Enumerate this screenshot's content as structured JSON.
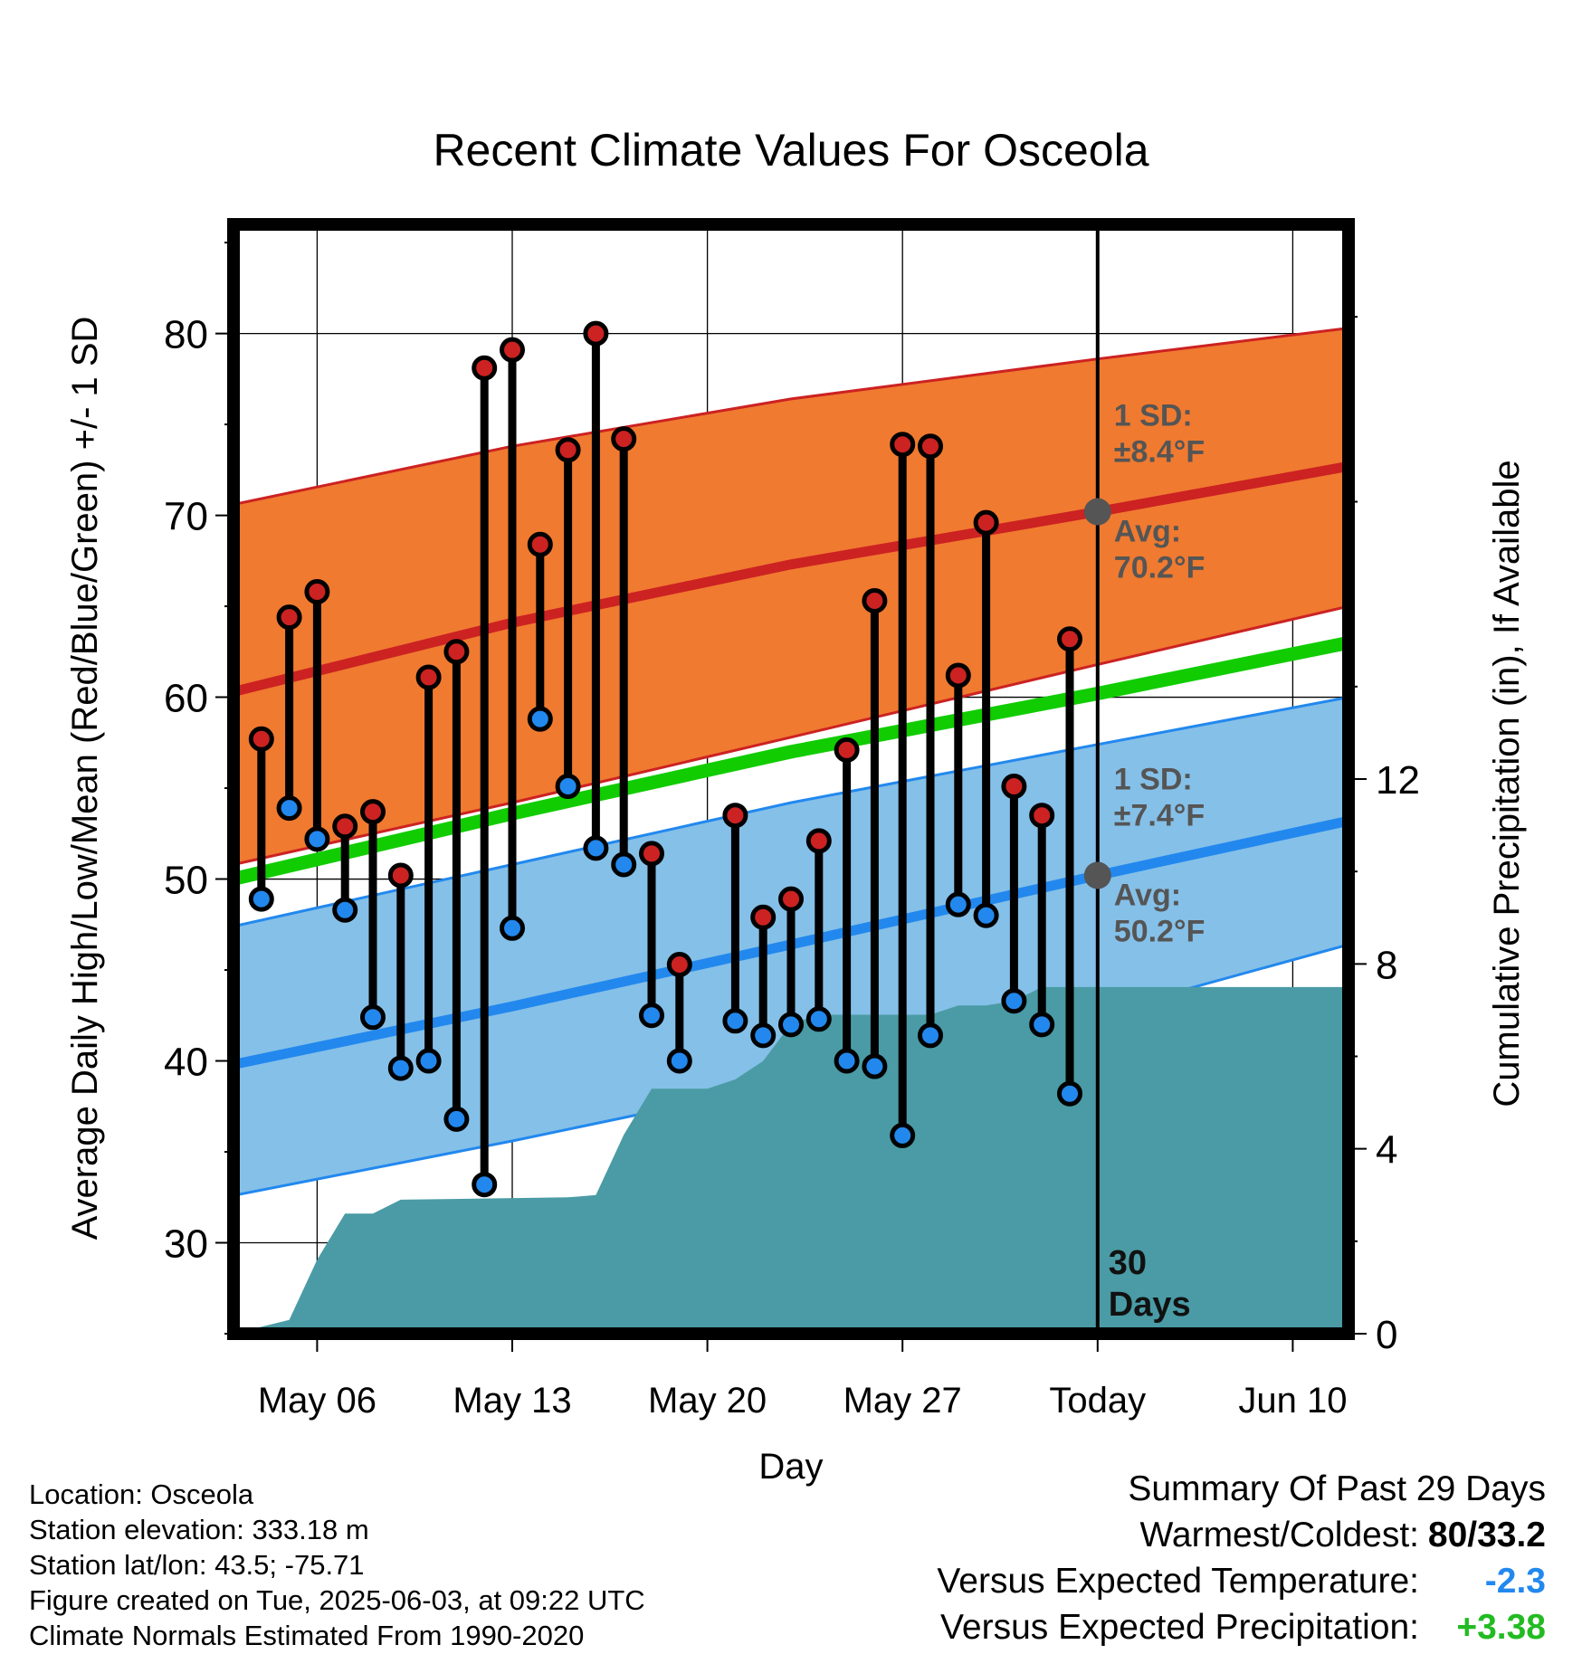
{
  "chart_data": {
    "type": "line",
    "title": "Recent Climate Values For Osceola",
    "xlabel": "Day",
    "ylabel": "Average Daily High/Low/Mean (Red/Blue/Green) +/- 1 SD",
    "y2label": "Cumulative Precipitation (in), If Available",
    "ylim": [
      25,
      86
    ],
    "y2lim": [
      0,
      24
    ],
    "yticks": [
      30,
      40,
      50,
      60,
      70,
      80
    ],
    "y2ticks": [
      0,
      4,
      8,
      12
    ],
    "xrange": [
      "2025-05-03",
      "2025-06-12"
    ],
    "xticks": [
      {
        "date": "2025-05-06",
        "label": "May 06"
      },
      {
        "date": "2025-05-13",
        "label": "May 13"
      },
      {
        "date": "2025-05-20",
        "label": "May 20"
      },
      {
        "date": "2025-05-27",
        "label": "May 27"
      },
      {
        "date": "2025-06-03",
        "label": "Today"
      },
      {
        "date": "2025-06-10",
        "label": "Jun 10"
      }
    ],
    "grid": true,
    "today": "2025-06-03",
    "today_window_label": [
      "30",
      "Days"
    ],
    "normals": {
      "dates": [
        "2025-05-03",
        "2025-05-13",
        "2025-05-23",
        "2025-06-03",
        "2025-06-12"
      ],
      "avg_high": [
        60.3,
        64.1,
        67.3,
        70.2,
        72.7
      ],
      "high_sd_upper": [
        70.6,
        73.8,
        76.4,
        78.6,
        80.3
      ],
      "high_sd_lower": [
        50.8,
        54.2,
        57.8,
        61.8,
        65.0
      ],
      "avg_low": [
        39.8,
        43.0,
        46.4,
        50.2,
        53.2
      ],
      "low_sd_upper": [
        47.4,
        50.8,
        54.2,
        57.4,
        60.0
      ],
      "low_sd_lower": [
        32.6,
        35.6,
        38.8,
        42.6,
        46.4
      ],
      "avg_mean": [
        50.0,
        53.6,
        57.0,
        60.2,
        63.0
      ]
    },
    "high_annotation": {
      "sd_label": "1 SD:",
      "sd_value": "±8.4°F",
      "avg_label": "Avg:",
      "avg_value": "70.2°F"
    },
    "low_annotation": {
      "sd_label": "1 SD:",
      "sd_value": "±7.4°F",
      "avg_label": "Avg:",
      "avg_value": "50.2°F"
    },
    "observed": [
      {
        "date": "2025-05-04",
        "high": 57.7,
        "low": 48.9
      },
      {
        "date": "2025-05-05",
        "high": 64.4,
        "low": 53.9
      },
      {
        "date": "2025-05-06",
        "high": 65.8,
        "low": 52.2
      },
      {
        "date": "2025-05-07",
        "high": 52.9,
        "low": 48.3
      },
      {
        "date": "2025-05-08",
        "high": 53.7,
        "low": 42.4
      },
      {
        "date": "2025-05-09",
        "high": 50.2,
        "low": 39.6
      },
      {
        "date": "2025-05-10",
        "high": 61.1,
        "low": 40.0
      },
      {
        "date": "2025-05-11",
        "high": 62.5,
        "low": 36.8
      },
      {
        "date": "2025-05-12",
        "high": 78.1,
        "low": 33.2
      },
      {
        "date": "2025-05-13",
        "high": 79.1,
        "low": 47.3
      },
      {
        "date": "2025-05-14",
        "high": 68.4,
        "low": 58.8
      },
      {
        "date": "2025-05-15",
        "high": 73.6,
        "low": 55.1
      },
      {
        "date": "2025-05-16",
        "high": 80.0,
        "low": 51.7
      },
      {
        "date": "2025-05-17",
        "high": 74.2,
        "low": 50.8
      },
      {
        "date": "2025-05-18",
        "high": 51.4,
        "low": 42.5
      },
      {
        "date": "2025-05-19",
        "high": 45.3,
        "low": 40.0
      },
      {
        "date": "2025-05-21",
        "high": 53.5,
        "low": 42.2
      },
      {
        "date": "2025-05-22",
        "high": 47.9,
        "low": 41.4
      },
      {
        "date": "2025-05-23",
        "high": 48.9,
        "low": 42.0
      },
      {
        "date": "2025-05-24",
        "high": 52.1,
        "low": 42.3
      },
      {
        "date": "2025-05-25",
        "high": 57.1,
        "low": 40.0
      },
      {
        "date": "2025-05-26",
        "high": 65.3,
        "low": 39.7
      },
      {
        "date": "2025-05-27",
        "high": 73.9,
        "low": 35.9
      },
      {
        "date": "2025-05-28",
        "high": 73.8,
        "low": 41.4
      },
      {
        "date": "2025-05-29",
        "high": 61.2,
        "low": 48.6
      },
      {
        "date": "2025-05-30",
        "high": 69.6,
        "low": 48.0
      },
      {
        "date": "2025-05-31",
        "high": 55.1,
        "low": 43.3
      },
      {
        "date": "2025-06-01",
        "high": 53.5,
        "low": 42.0
      },
      {
        "date": "2025-06-02",
        "high": 63.2,
        "low": 38.2
      }
    ],
    "cumulative_precip": {
      "dates": [
        "2025-05-03",
        "2025-05-05",
        "2025-05-06",
        "2025-05-07",
        "2025-05-08",
        "2025-05-09",
        "2025-05-15",
        "2025-05-16",
        "2025-05-17",
        "2025-05-18",
        "2025-05-20",
        "2025-05-21",
        "2025-05-22",
        "2025-05-23",
        "2025-05-24",
        "2025-05-25",
        "2025-05-28",
        "2025-05-29",
        "2025-05-30",
        "2025-05-31",
        "2025-06-01",
        "2025-06-12"
      ],
      "values": [
        0.0,
        0.3,
        1.6,
        2.6,
        2.6,
        2.9,
        2.95,
        3.0,
        4.3,
        5.3,
        5.3,
        5.5,
        5.9,
        6.7,
        6.9,
        6.9,
        6.9,
        7.1,
        7.1,
        7.2,
        7.5,
        7.5
      ]
    },
    "colors": {
      "high": "#cc2222",
      "high_band": "#f07a30",
      "low": "#2288ee",
      "low_band": "#85c0e8",
      "mean": "#11cc00",
      "precip": "#4a9ba5",
      "marker_avg": "#555555"
    }
  },
  "info": {
    "location": "Location: Osceola",
    "elevation": "Station elevation: 333.18 m",
    "latlon": "Station lat/lon: 43.5; -75.71",
    "created": "Figure created on Tue, 2025-06-03, at 09:22 UTC",
    "normals": "Climate Normals Estimated From 1990-2020"
  },
  "summary": {
    "heading": "Summary Of Past 29 Days",
    "warmest_label": "Warmest/Coldest:",
    "warmest_value": "80/33.2",
    "temp_label": "Versus Expected Temperature:",
    "temp_value": "-2.3",
    "temp_color": "#2288ee",
    "precip_label": "Versus Expected Precipitation:",
    "precip_value": "+3.38",
    "precip_color": "#22bb22"
  }
}
